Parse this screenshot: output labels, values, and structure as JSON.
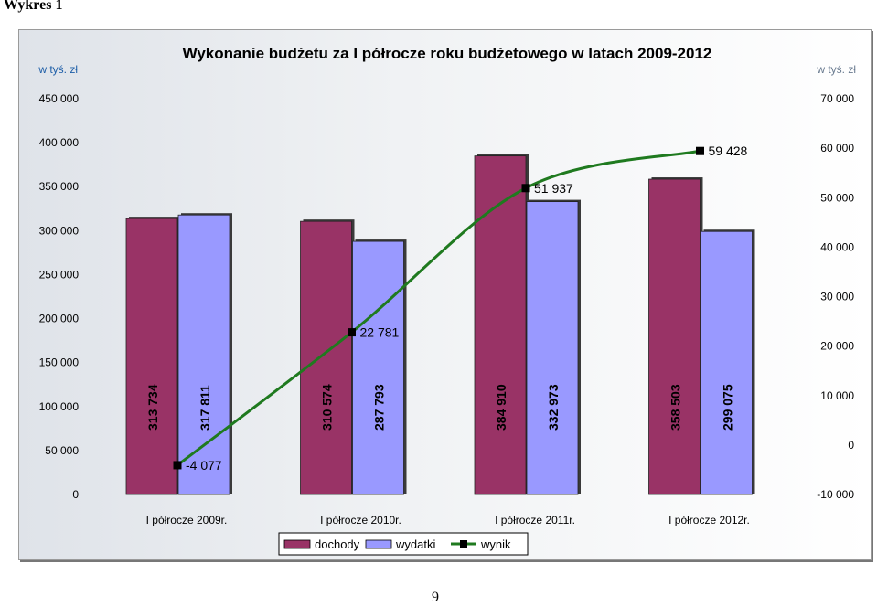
{
  "page": {
    "caption": "Wykres 1",
    "page_number": "9"
  },
  "chart_data": {
    "type": "bar",
    "title": "Wykonanie budżetu za I półrocze roku budżetowego w latach 2009-2012",
    "y_left_unit": "w tyś. zł",
    "y_right_unit": "w tyś. zł",
    "y_left_ticks": [
      "450 000",
      "400 000",
      "350 000",
      "300 000",
      "250 000",
      "200 000",
      "150 000",
      "100 000",
      "50 000",
      "0"
    ],
    "y_right_ticks": [
      "70 000",
      "60 000",
      "50 000",
      "40 000",
      "30 000",
      "20 000",
      "10 000",
      "0",
      "-10 000"
    ],
    "ylim_left": [
      0,
      450000
    ],
    "ylim_right": [
      -10000,
      70000
    ],
    "categories": [
      "I półrocze 2009r.",
      "I półrocze 2010r.",
      "I półrocze 2011r.",
      "I półrocze 2012r."
    ],
    "series": [
      {
        "name": "dochody",
        "type": "bar",
        "axis": "left",
        "color": "#993366",
        "values": [
          313734,
          310574,
          384910,
          358503
        ],
        "labels": [
          "313 734",
          "310 574",
          "384 910",
          "358 503"
        ]
      },
      {
        "name": "wydatki",
        "type": "bar",
        "axis": "left",
        "color": "#9999ff",
        "values": [
          317811,
          287793,
          332973,
          299075
        ],
        "labels": [
          "317 811",
          "287 793",
          "332 973",
          "299 075"
        ]
      },
      {
        "name": "wynik",
        "type": "line",
        "axis": "right",
        "color": "#1f7a1f",
        "values": [
          -4077,
          22781,
          51937,
          59428
        ],
        "labels": [
          "-4 077",
          "22 781",
          "51 937",
          "59 428"
        ],
        "label_colors": [
          "#cc0000",
          "#000000",
          "#000000",
          "#000000"
        ]
      }
    ],
    "legend": [
      "dochody",
      "wydatki",
      "wynik"
    ],
    "legend_position": "bottom",
    "grid": false
  }
}
